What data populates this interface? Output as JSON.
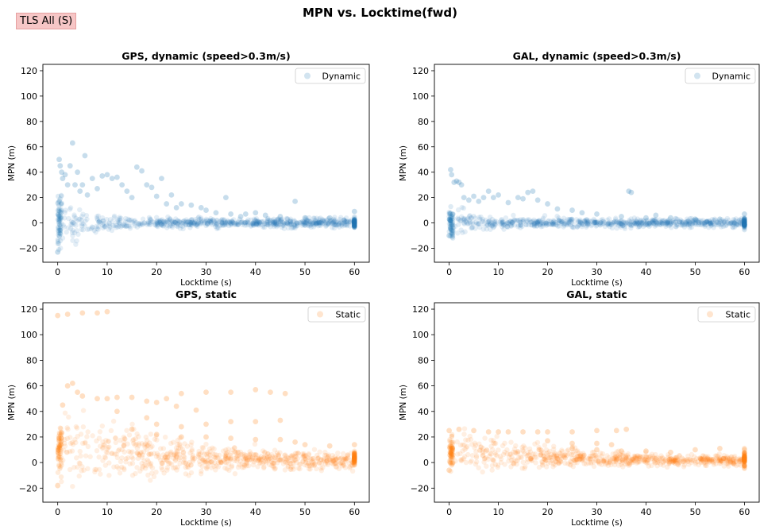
{
  "badge": "TLS All (S)",
  "suptitle": "MPN vs. Locktime(fwd)",
  "colors": {
    "dynamic": "#1f77b4",
    "static": "#ff7f0e"
  },
  "chart_data": [
    {
      "type": "scatter",
      "title": "GPS, dynamic (speed>0.3m/s)",
      "xlabel": "Locktime (s)",
      "ylabel": "MPN (m)",
      "xlim": [
        -3,
        63
      ],
      "ylim": [
        -31,
        125
      ],
      "xticks": [
        0,
        10,
        20,
        30,
        40,
        50,
        60
      ],
      "yticks": [
        -20,
        0,
        20,
        40,
        60,
        80,
        100,
        120
      ],
      "legend": "top-right",
      "series": [
        {
          "name": "Dynamic",
          "color": "#1f77b4",
          "alpha": 0.15,
          "points": [
            [
              0,
              -23
            ],
            [
              0.3,
              50
            ],
            [
              0.5,
              45
            ],
            [
              0.8,
              40
            ],
            [
              1,
              35
            ],
            [
              1.5,
              38
            ],
            [
              2,
              30
            ],
            [
              2.5,
              45
            ],
            [
              3,
              63
            ],
            [
              3.5,
              30
            ],
            [
              4,
              40
            ],
            [
              4.5,
              25
            ],
            [
              5,
              30
            ],
            [
              5.5,
              53
            ],
            [
              6,
              22
            ],
            [
              7,
              35
            ],
            [
              8,
              27
            ],
            [
              9,
              37
            ],
            [
              10,
              38
            ],
            [
              11,
              35
            ],
            [
              12,
              36
            ],
            [
              13,
              30
            ],
            [
              14,
              25
            ],
            [
              15,
              20
            ],
            [
              16,
              44
            ],
            [
              17,
              41
            ],
            [
              18,
              30
            ],
            [
              19,
              28
            ],
            [
              20,
              21
            ],
            [
              21,
              35
            ],
            [
              22,
              15
            ],
            [
              23,
              22
            ],
            [
              24,
              12
            ],
            [
              25,
              15
            ],
            [
              27,
              14
            ],
            [
              29,
              12
            ],
            [
              30,
              10
            ],
            [
              32,
              8
            ],
            [
              34,
              20
            ],
            [
              35,
              7
            ],
            [
              37,
              5
            ],
            [
              38,
              7
            ],
            [
              40,
              8
            ],
            [
              42,
              6
            ],
            [
              45,
              5
            ],
            [
              48,
              17
            ],
            [
              50,
              4
            ],
            [
              55,
              4
            ],
            [
              60,
              9
            ]
          ]
        }
      ]
    },
    {
      "type": "scatter",
      "title": "GAL, dynamic (speed>0.3m/s)",
      "xlabel": "Locktime (s)",
      "ylabel": "MPN (m)",
      "xlim": [
        -3,
        63
      ],
      "ylim": [
        -31,
        125
      ],
      "xticks": [
        0,
        10,
        20,
        30,
        40,
        50,
        60
      ],
      "yticks": [
        -20,
        0,
        20,
        40,
        60,
        80,
        100,
        120
      ],
      "legend": "top-right",
      "series": [
        {
          "name": "Dynamic",
          "color": "#1f77b4",
          "alpha": 0.15,
          "points": [
            [
              0,
              -10
            ],
            [
              0.3,
              42
            ],
            [
              0.5,
              38
            ],
            [
              1,
              32
            ],
            [
              1.5,
              33
            ],
            [
              2,
              32
            ],
            [
              2.5,
              30
            ],
            [
              3,
              20
            ],
            [
              4,
              18
            ],
            [
              5,
              21
            ],
            [
              6,
              17
            ],
            [
              7,
              20
            ],
            [
              8,
              25
            ],
            [
              9,
              20
            ],
            [
              10,
              22
            ],
            [
              12,
              16
            ],
            [
              14,
              20
            ],
            [
              15,
              19
            ],
            [
              16,
              24
            ],
            [
              17,
              25
            ],
            [
              18,
              18
            ],
            [
              20,
              15
            ],
            [
              22,
              11
            ],
            [
              25,
              10
            ],
            [
              27,
              8
            ],
            [
              30,
              7
            ],
            [
              35,
              5
            ],
            [
              36.5,
              25
            ],
            [
              37,
              24
            ],
            [
              40,
              4
            ],
            [
              42,
              6
            ],
            [
              45,
              4
            ],
            [
              50,
              3
            ],
            [
              55,
              3
            ],
            [
              60,
              7
            ]
          ]
        }
      ]
    },
    {
      "type": "scatter",
      "title": "GPS, static",
      "xlabel": "Locktime (s)",
      "ylabel": "MPN (m)",
      "xlim": [
        -3,
        63
      ],
      "ylim": [
        -31,
        125
      ],
      "xticks": [
        0,
        10,
        20,
        30,
        40,
        50,
        60
      ],
      "yticks": [
        -20,
        0,
        20,
        40,
        60,
        80,
        100,
        120
      ],
      "legend": "top-right",
      "series": [
        {
          "name": "Static",
          "color": "#ff7f0e",
          "alpha": 0.15,
          "points": [
            [
              0,
              -18
            ],
            [
              0,
              115
            ],
            [
              2,
              116
            ],
            [
              5,
              117
            ],
            [
              8,
              117
            ],
            [
              10,
              118
            ],
            [
              1,
              45
            ],
            [
              2,
              60
            ],
            [
              3,
              62
            ],
            [
              4,
              55
            ],
            [
              5,
              52
            ],
            [
              8,
              50
            ],
            [
              10,
              50
            ],
            [
              12,
              51
            ],
            [
              15,
              51
            ],
            [
              18,
              48
            ],
            [
              20,
              47
            ],
            [
              22,
              50
            ],
            [
              24,
              44
            ],
            [
              28,
              41
            ],
            [
              25,
              54
            ],
            [
              30,
              55
            ],
            [
              35,
              55
            ],
            [
              40,
              57
            ],
            [
              43,
              55
            ],
            [
              46,
              54
            ],
            [
              12,
              40
            ],
            [
              18,
              35
            ],
            [
              20,
              30
            ],
            [
              25,
              28
            ],
            [
              30,
              30
            ],
            [
              35,
              32
            ],
            [
              40,
              32
            ],
            [
              45,
              33
            ],
            [
              15,
              26
            ],
            [
              20,
              22
            ],
            [
              25,
              20
            ],
            [
              30,
              20
            ],
            [
              35,
              19
            ],
            [
              40,
              18
            ],
            [
              45,
              18
            ],
            [
              48,
              16
            ],
            [
              50,
              14
            ],
            [
              55,
              13
            ],
            [
              60,
              14
            ]
          ]
        }
      ]
    },
    {
      "type": "scatter",
      "title": "GAL, static",
      "xlabel": "Locktime (s)",
      "ylabel": "MPN (m)",
      "xlim": [
        -3,
        63
      ],
      "ylim": [
        -31,
        125
      ],
      "xticks": [
        0,
        10,
        20,
        30,
        40,
        50,
        60
      ],
      "yticks": [
        -20,
        0,
        20,
        40,
        60,
        80,
        100,
        120
      ],
      "legend": "top-right",
      "series": [
        {
          "name": "Static",
          "color": "#ff7f0e",
          "alpha": 0.15,
          "points": [
            [
              0,
              -6
            ],
            [
              0,
              25
            ],
            [
              2,
              26
            ],
            [
              5,
              25
            ],
            [
              8,
              24
            ],
            [
              10,
              24
            ],
            [
              12,
              24
            ],
            [
              15,
              24
            ],
            [
              18,
              24
            ],
            [
              20,
              24
            ],
            [
              25,
              24
            ],
            [
              30,
              25
            ],
            [
              34,
              25
            ],
            [
              36,
              26
            ],
            [
              20,
              17
            ],
            [
              25,
              15
            ],
            [
              30,
              15
            ],
            [
              33,
              14
            ],
            [
              25,
              11
            ],
            [
              30,
              10
            ],
            [
              35,
              9
            ],
            [
              40,
              9
            ],
            [
              45,
              8
            ],
            [
              50,
              10
            ],
            [
              55,
              11
            ],
            [
              60,
              10
            ]
          ]
        }
      ]
    }
  ]
}
